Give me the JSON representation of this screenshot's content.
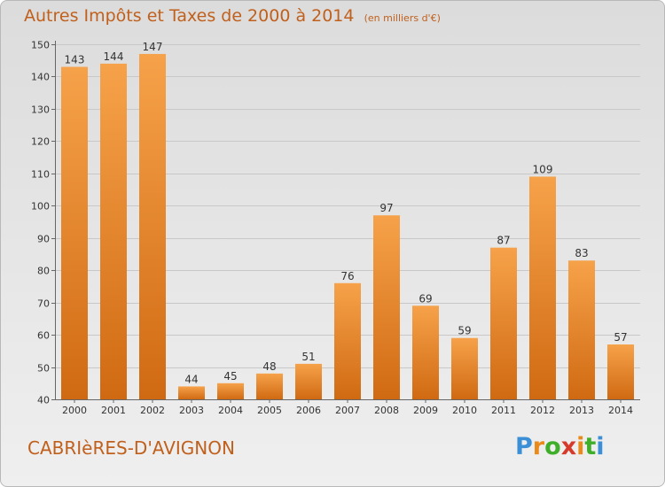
{
  "header": {
    "title": "Autres Impôts et Taxes de 2000 à 2014",
    "unit": "(en milliers d'€)"
  },
  "footer": {
    "commune": "CABRIèRES-D'AVIGNON",
    "logo_letters": [
      "P",
      "r",
      "o",
      "x",
      "i",
      "t",
      "i"
    ],
    "logo_colors": [
      "#3a8fd6",
      "#e98a1a",
      "#3fae2a",
      "#d63a2a",
      "#e98a1a",
      "#3fae2a",
      "#3a8fd6"
    ]
  },
  "colors": {
    "bar_light": "#f6a24a",
    "bar_dark": "#d06a12",
    "title": "#c0601c",
    "grid": "#c8c8c8"
  },
  "chart_data": {
    "type": "bar",
    "title": "Autres Impôts et Taxes de 2000 à 2014",
    "categories": [
      "2000",
      "2001",
      "2002",
      "2003",
      "2004",
      "2005",
      "2006",
      "2007",
      "2008",
      "2009",
      "2010",
      "2011",
      "2012",
      "2013",
      "2014"
    ],
    "values": [
      143,
      144,
      147,
      44,
      45,
      48,
      51,
      76,
      97,
      69,
      59,
      87,
      109,
      83,
      57
    ],
    "ylim": [
      40,
      150
    ],
    "yticks": [
      40,
      50,
      60,
      70,
      80,
      90,
      100,
      110,
      120,
      130,
      140,
      150
    ],
    "grid": true,
    "xlabel": "",
    "ylabel": ""
  }
}
